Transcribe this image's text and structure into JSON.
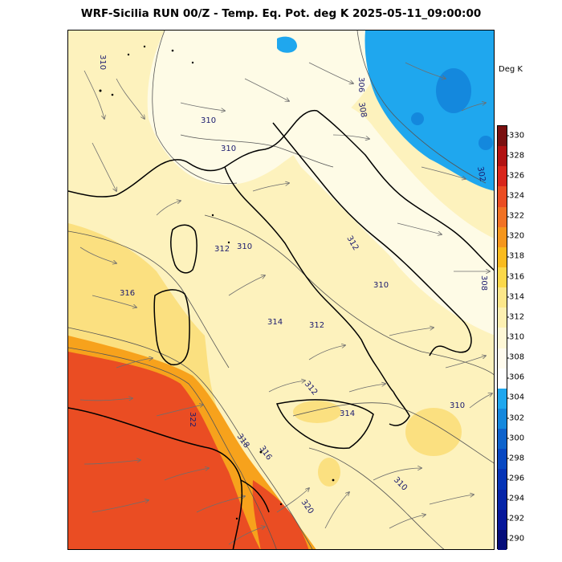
{
  "header": {
    "title": "WRF-Sicilia RUN 00/Z - Temp. Eq. Pot. deg K 2025-05-11_09:00:00"
  },
  "legend": {
    "unit": "Deg K",
    "ticks": [
      "330",
      "328",
      "326",
      "324",
      "322",
      "320",
      "318",
      "316",
      "314",
      "312",
      "310",
      "308",
      "306",
      "304",
      "302",
      "300",
      "298",
      "296",
      "294",
      "292",
      "290"
    ],
    "colors": [
      "#7a1010",
      "#b11212",
      "#d8261c",
      "#ea4d23",
      "#f17225",
      "#f5961d",
      "#f9bb1f",
      "#fbd84a",
      "#fce78a",
      "#fdf0b2",
      "#fef7d6",
      "#fffbee",
      "#ffffff",
      "#1fa7ee",
      "#1488dd",
      "#0e63cc",
      "#0848c2",
      "#0634b6",
      "#0625a8",
      "#07179a",
      "#050d7a"
    ]
  },
  "map": {
    "contour_labels": [
      {
        "text": "310"
      },
      {
        "text": "310"
      },
      {
        "text": "310"
      },
      {
        "text": "310"
      },
      {
        "text": "310"
      },
      {
        "text": "310"
      },
      {
        "text": "310"
      },
      {
        "text": "312"
      },
      {
        "text": "312"
      },
      {
        "text": "312"
      },
      {
        "text": "312"
      },
      {
        "text": "314"
      },
      {
        "text": "314"
      },
      {
        "text": "316"
      },
      {
        "text": "316"
      },
      {
        "text": "318"
      },
      {
        "text": "320"
      },
      {
        "text": "322"
      },
      {
        "text": "306"
      },
      {
        "text": "308"
      },
      {
        "text": "308"
      },
      {
        "text": "302"
      }
    ],
    "colors": {
      "sea_warm": "#fdf2bd",
      "pale": "#fefbe6",
      "yellow": "#fbe080",
      "orange": "#f7a21c",
      "red": "#ea4d23",
      "blue": "#1fa7ee",
      "deep_blue": "#1488dd",
      "coast": "#000000",
      "contour": "#555555",
      "streamline": "#6e6e6e"
    }
  }
}
